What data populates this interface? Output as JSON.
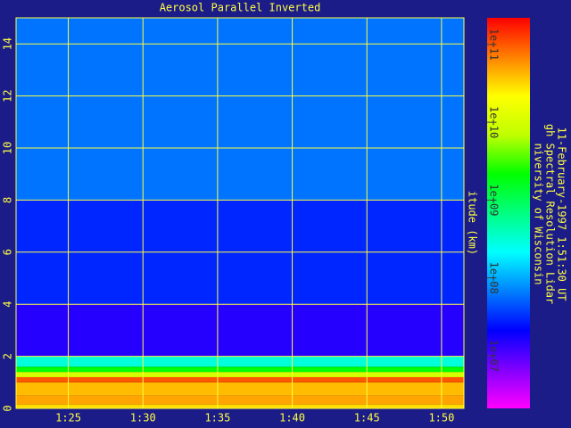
{
  "chart_data": {
    "type": "heatmap-profile",
    "title": "Aerosol Parallel Inverted",
    "ylabel": "itude (km)",
    "side_texts": [
      "niversity of Wisconsin",
      "gh Spectral Resolution Lidar",
      "11-February-1997  1:51:30 UT"
    ],
    "xlim": [
      81.5,
      111.5
    ],
    "xticks": [
      {
        "value": 85,
        "label": "1:25"
      },
      {
        "value": 90,
        "label": "1:30"
      },
      {
        "value": 95,
        "label": "1:35"
      },
      {
        "value": 100,
        "label": "1:40"
      },
      {
        "value": 105,
        "label": "1:45"
      },
      {
        "value": 110,
        "label": "1:50"
      }
    ],
    "ylim": [
      0,
      15
    ],
    "yticks": [
      0,
      2,
      4,
      6,
      8,
      10,
      12,
      14
    ],
    "grid": true,
    "layers": {
      "altitude_edges": [
        0,
        0.15,
        0.5,
        1.0,
        1.2,
        1.4,
        1.6,
        2.0,
        4.0,
        8.0,
        15.0
      ],
      "values": [
        30000000000,
        50000000000,
        40000000000,
        100000000000,
        10000000000,
        2000000000,
        300000000,
        15000000,
        30000000,
        60000000
      ]
    },
    "colorbar": {
      "log": true,
      "lim": [
        2100000,
        220000000000
      ],
      "ticks": [
        {
          "value": 10000000,
          "label": "1e+07"
        },
        {
          "value": 100000000,
          "label": "1e+08"
        },
        {
          "value": 1000000000,
          "label": "1e+09"
        },
        {
          "value": 10000000000,
          "label": "1e+10"
        },
        {
          "value": 100000000000,
          "label": "1e+11"
        }
      ],
      "colormap": [
        "#ff00ff",
        "#8000ff",
        "#0000ff",
        "#0080ff",
        "#00ffff",
        "#00ff80",
        "#00ff00",
        "#c0ff00",
        "#ffff00",
        "#ff8000",
        "#ff0000"
      ]
    }
  }
}
